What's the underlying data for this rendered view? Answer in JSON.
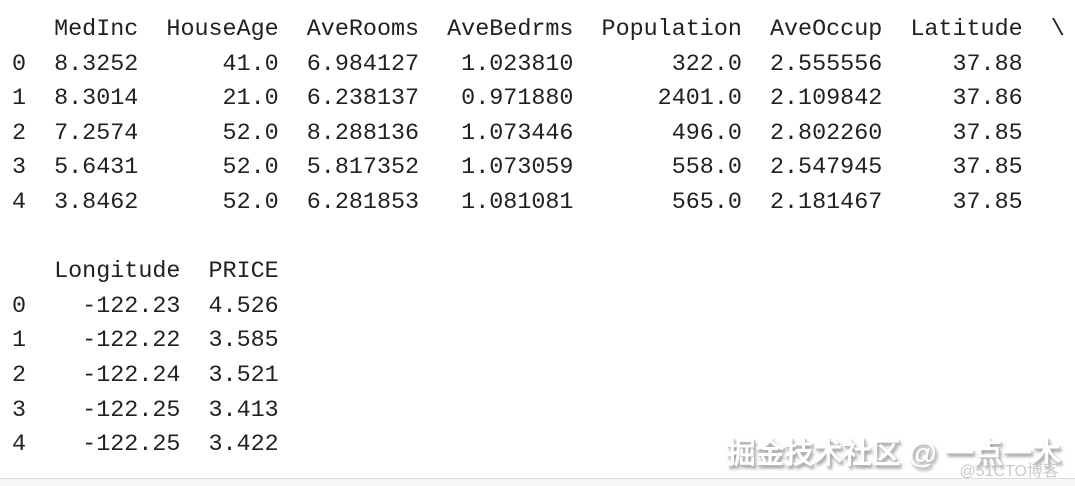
{
  "console": {
    "text_color": "#212121",
    "background_color": "#ffffff",
    "blocks": [
      {
        "name": "dataframe-head-block-1",
        "columns": [
          "MedInc",
          "HouseAge",
          "AveRooms",
          "AveBedrms",
          "Population",
          "AveOccup",
          "Latitude"
        ],
        "continuation": "\\",
        "rows": [
          {
            "index": "0",
            "values": [
              "8.3252",
              "41.0",
              "6.984127",
              "1.023810",
              "322.0",
              "2.555556",
              "37.88"
            ]
          },
          {
            "index": "1",
            "values": [
              "8.3014",
              "21.0",
              "6.238137",
              "0.971880",
              "2401.0",
              "2.109842",
              "37.86"
            ]
          },
          {
            "index": "2",
            "values": [
              "7.2574",
              "52.0",
              "8.288136",
              "1.073446",
              "496.0",
              "2.802260",
              "37.85"
            ]
          },
          {
            "index": "3",
            "values": [
              "5.6431",
              "52.0",
              "5.817352",
              "1.073059",
              "558.0",
              "2.547945",
              "37.85"
            ]
          },
          {
            "index": "4",
            "values": [
              "3.8462",
              "52.0",
              "6.281853",
              "1.081081",
              "565.0",
              "2.181467",
              "37.85"
            ]
          }
        ]
      },
      {
        "name": "dataframe-head-block-2",
        "columns": [
          "Longitude",
          "PRICE"
        ],
        "continuation": "",
        "rows": [
          {
            "index": "0",
            "values": [
              "-122.23",
              "4.526"
            ]
          },
          {
            "index": "1",
            "values": [
              "-122.22",
              "3.585"
            ]
          },
          {
            "index": "2",
            "values": [
              "-122.24",
              "3.521"
            ]
          },
          {
            "index": "3",
            "values": [
              "-122.25",
              "3.413"
            ]
          },
          {
            "index": "4",
            "values": [
              "-122.25",
              "3.422"
            ]
          }
        ]
      }
    ]
  },
  "watermarks": {
    "primary": {
      "text": "掘金技术社区 @ 一点一木",
      "color": "#ffffff"
    },
    "secondary": {
      "text": "@51CTO博客",
      "color": "#c9c9c9"
    }
  },
  "bottom_bar": {
    "fill_color": "#f6f6f6",
    "border_color": "#dcdcdc"
  }
}
